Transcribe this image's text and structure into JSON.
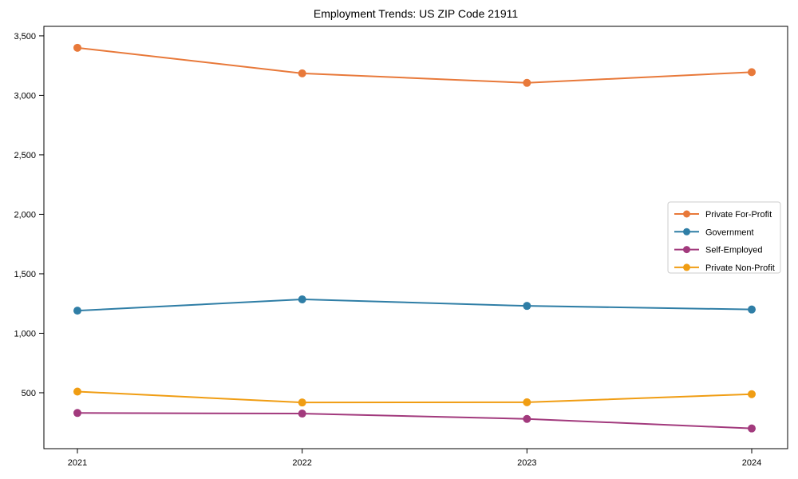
{
  "chart_data": {
    "type": "line",
    "title": "Employment Trends: US ZIP Code 21911",
    "categories": [
      "2021",
      "2022",
      "2023",
      "2024"
    ],
    "series": [
      {
        "name": "Private For-Profit",
        "color": "#e8793a",
        "values": [
          3400,
          3185,
          3105,
          3195
        ]
      },
      {
        "name": "Government",
        "color": "#2f7ea6",
        "values": [
          1190,
          1285,
          1230,
          1200
        ]
      },
      {
        "name": "Self-Employed",
        "color": "#a23a7d",
        "values": [
          330,
          325,
          280,
          200
        ]
      },
      {
        "name": "Private Non-Profit",
        "color": "#f09d13",
        "values": [
          510,
          418,
          420,
          488
        ]
      }
    ],
    "xlabel": "",
    "ylabel": "",
    "ylim": [
      30,
      3580
    ],
    "yticks": [
      500,
      1000,
      1500,
      2000,
      2500,
      3000,
      3500
    ],
    "ytick_labels": [
      "500",
      "1,000",
      "1,500",
      "2,000",
      "2,500",
      "3,000",
      "3,500"
    ],
    "grid": false,
    "legend_position": "center-right",
    "frame_color": "#000000",
    "legend_border_color": "#cccccc",
    "legend_background": "#ffffff"
  }
}
